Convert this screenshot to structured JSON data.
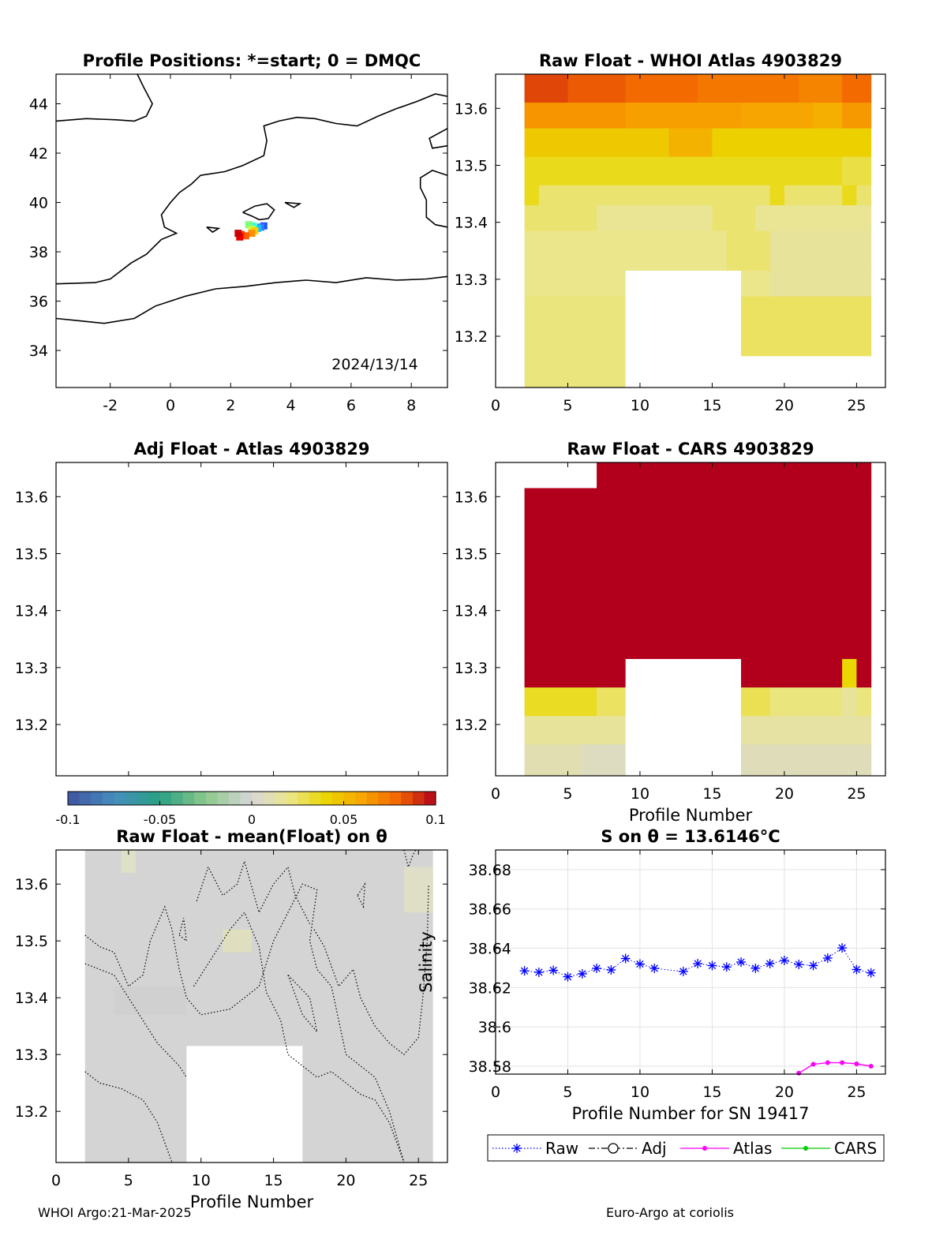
{
  "footer": {
    "left": "WHOI Argo:21-Mar-2025",
    "right": "Euro-Argo at coriolis"
  },
  "colors": {
    "raw": "#0000ff",
    "adj": "#000000",
    "atlas": "#ff00ff",
    "cars": "#00cc00",
    "missing": "#ffffff",
    "anomaly_gray": "#d4d4d4"
  },
  "chart_data": [
    {
      "id": "map",
      "type": "scatter",
      "title": "Profile Positions: *=start; 0 = DMQC",
      "annotation": "2024/13/14",
      "xlim": [
        -3.8,
        9.2
      ],
      "ylim": [
        32.5,
        45.2
      ],
      "xticks": [
        -2,
        0,
        2,
        4,
        6,
        8
      ],
      "yticks": [
        34,
        36,
        38,
        40,
        42,
        44
      ],
      "positions": [
        {
          "lon": 3.1,
          "lat": 39.05,
          "color": "#1f4fff"
        },
        {
          "lon": 3.0,
          "lat": 39.0,
          "color": "#2f7fff"
        },
        {
          "lon": 2.9,
          "lat": 38.95,
          "color": "#1fbfff"
        },
        {
          "lon": 2.75,
          "lat": 39.05,
          "color": "#3fffcf"
        },
        {
          "lon": 2.6,
          "lat": 39.1,
          "color": "#7fff7f"
        },
        {
          "lon": 2.7,
          "lat": 38.9,
          "color": "#cfff3f"
        },
        {
          "lon": 2.8,
          "lat": 38.85,
          "color": "#ffcf00"
        },
        {
          "lon": 2.7,
          "lat": 38.75,
          "color": "#ff8f00"
        },
        {
          "lon": 2.5,
          "lat": 38.65,
          "color": "#ff5f00"
        },
        {
          "lon": 2.35,
          "lat": 38.7,
          "color": "#ff3f00"
        },
        {
          "lon": 2.3,
          "lat": 38.6,
          "color": "#e60000"
        },
        {
          "lon": 2.25,
          "lat": 38.75,
          "color": "#cc0000"
        }
      ]
    },
    {
      "id": "raw_atlas",
      "type": "heatmap",
      "title": "Raw Float - WHOI Atlas  4903829",
      "xlabel": "",
      "xlim": [
        0,
        27
      ],
      "ylim": [
        13.11,
        13.66
      ],
      "xticks": [
        0,
        5,
        10,
        15,
        20,
        25
      ],
      "yticks": [
        13.2,
        13.3,
        13.4,
        13.5,
        13.6
      ],
      "clim": [
        -0.1,
        0.1
      ],
      "bands": [
        {
          "ytop": 13.66,
          "ybot": 13.61,
          "cells": [
            [
              2,
              5,
              0.086
            ],
            [
              5,
              9,
              0.082
            ],
            [
              9,
              14,
              0.078
            ],
            [
              14,
              21,
              0.074
            ],
            [
              21,
              24,
              0.07
            ],
            [
              24,
              26,
              0.078
            ]
          ]
        },
        {
          "ytop": 13.61,
          "ybot": 13.565,
          "cells": [
            [
              2,
              9,
              0.065
            ],
            [
              9,
              17,
              0.062
            ],
            [
              17,
              22,
              0.06
            ],
            [
              22,
              24,
              0.056
            ],
            [
              24,
              26,
              0.064
            ]
          ]
        },
        {
          "ytop": 13.565,
          "ybot": 13.515,
          "cells": [
            [
              2,
              12,
              0.046
            ],
            [
              12,
              15,
              0.055
            ],
            [
              15,
              26,
              0.043
            ]
          ]
        },
        {
          "ytop": 13.515,
          "ybot": 13.465,
          "cells": [
            [
              2,
              24,
              0.036
            ],
            [
              24,
              26,
              0.03
            ]
          ]
        },
        {
          "ytop": 13.465,
          "ybot": 13.43,
          "cells": [
            [
              2,
              3,
              0.036
            ],
            [
              3,
              19,
              0.024
            ],
            [
              19,
              20,
              0.036
            ],
            [
              20,
              24,
              0.024
            ],
            [
              24,
              25,
              0.036
            ],
            [
              25,
              26,
              0.024
            ]
          ]
        },
        {
          "ytop": 13.43,
          "ybot": 13.385,
          "cells": [
            [
              2,
              7,
              0.024
            ],
            [
              7,
              15,
              0.018
            ],
            [
              15,
              18,
              0.024
            ],
            [
              18,
              26,
              0.018
            ]
          ]
        },
        {
          "ytop": 13.385,
          "ybot": 13.315,
          "cells": [
            [
              2,
              16,
              0.02
            ],
            [
              16,
              19,
              0.024
            ],
            [
              19,
              26,
              0.016
            ]
          ]
        },
        {
          "ytop": 13.315,
          "ybot": 13.27,
          "cells": [
            [
              2,
              9,
              0.02
            ],
            [
              9,
              17,
              null
            ],
            [
              17,
              19,
              0.02
            ],
            [
              19,
              26,
              0.016
            ]
          ]
        },
        {
          "ytop": 13.27,
          "ybot": 13.165,
          "cells": [
            [
              2,
              9,
              0.022
            ],
            [
              9,
              17,
              null
            ],
            [
              17,
              26,
              0.026
            ]
          ]
        },
        {
          "ytop": 13.165,
          "ybot": 13.11,
          "cells": [
            [
              2,
              9,
              0.022
            ],
            [
              9,
              26,
              null
            ]
          ]
        }
      ]
    },
    {
      "id": "adj_atlas",
      "type": "heatmap",
      "title": "Adj Float - Atlas  4903829",
      "xlim": [
        0,
        27
      ],
      "ylim": [
        13.11,
        13.66
      ],
      "yticks": [
        13.2,
        13.3,
        13.4,
        13.5,
        13.6
      ],
      "bands": []
    },
    {
      "id": "raw_cars",
      "type": "heatmap",
      "title": "Raw Float - CARS  4903829",
      "xlabel": "Profile Number",
      "xlim": [
        0,
        27
      ],
      "ylim": [
        13.11,
        13.66
      ],
      "xticks": [
        0,
        5,
        10,
        15,
        20,
        25
      ],
      "yticks": [
        13.2,
        13.3,
        13.4,
        13.5,
        13.6
      ],
      "clim": [
        -0.1,
        0.1
      ],
      "bands": [
        {
          "ytop": 13.66,
          "ybot": 13.615,
          "cells": [
            [
              2,
              7,
              null
            ],
            [
              7,
              26,
              0.1
            ]
          ]
        },
        {
          "ytop": 13.615,
          "ybot": 13.315,
          "cells": [
            [
              2,
              26,
              0.1
            ]
          ]
        },
        {
          "ytop": 13.315,
          "ybot": 13.265,
          "cells": [
            [
              2,
              9,
              0.1
            ],
            [
              9,
              17,
              null
            ],
            [
              17,
              24,
              0.1
            ],
            [
              24,
              25,
              0.04
            ],
            [
              25,
              26,
              0.1
            ]
          ]
        },
        {
          "ytop": 13.265,
          "ybot": 13.215,
          "cells": [
            [
              2,
              7,
              0.035
            ],
            [
              7,
              9,
              0.026
            ],
            [
              9,
              17,
              null
            ],
            [
              17,
              19,
              0.028
            ],
            [
              19,
              24,
              0.022
            ],
            [
              24,
              25,
              0.016
            ],
            [
              25,
              26,
              0.022
            ]
          ]
        },
        {
          "ytop": 13.215,
          "ybot": 13.165,
          "cells": [
            [
              2,
              9,
              0.016
            ],
            [
              9,
              17,
              null
            ],
            [
              17,
              26,
              0.014
            ]
          ]
        },
        {
          "ytop": 13.165,
          "ybot": 13.11,
          "cells": [
            [
              2,
              6,
              0.01
            ],
            [
              6,
              9,
              0.006
            ],
            [
              9,
              17,
              null
            ],
            [
              17,
              26,
              0.008
            ]
          ]
        }
      ]
    },
    {
      "id": "colorbar",
      "type": "heatmap",
      "clim": [
        -0.1,
        0.1
      ],
      "ticks": [
        -0.1,
        -0.05,
        0,
        0.05,
        0.1
      ],
      "tick_labels": [
        "-0.1",
        "-0.05",
        "0",
        "0.05",
        "0.1"
      ]
    },
    {
      "id": "anomaly",
      "type": "heatmap",
      "title": "Raw Float - mean(Float) on θ",
      "xlabel": "Profile Number",
      "xlim": [
        0,
        27
      ],
      "ylim": [
        13.11,
        13.66
      ],
      "xticks": [
        0,
        5,
        10,
        15,
        20,
        25
      ],
      "yticks": [
        13.2,
        13.3,
        13.4,
        13.5,
        13.6
      ],
      "clim": [
        -0.1,
        0.1
      ],
      "missing_block": {
        "x": [
          9,
          17
        ],
        "y": [
          13.11,
          13.315
        ]
      },
      "data_x_range": [
        2,
        26
      ]
    },
    {
      "id": "salinity",
      "type": "line",
      "title": "S on θ = 13.6146°C",
      "xlabel": "Profile Number for SN 19417",
      "ylabel": "Salinity",
      "xlim": [
        0,
        27
      ],
      "ylim": [
        38.576,
        38.69
      ],
      "xticks": [
        0,
        5,
        10,
        15,
        20,
        25
      ],
      "yticks": [
        38.58,
        38.6,
        38.62,
        38.64,
        38.66,
        38.68
      ],
      "ytick_labels": [
        "38.58",
        "38.6",
        "38.62",
        "38.64",
        "38.66",
        "38.68"
      ],
      "grid": true,
      "legend": "bottom-outside",
      "series": [
        {
          "name": "Raw",
          "style": "dotted-star",
          "x": [
            2,
            3,
            4,
            5,
            6,
            7,
            8,
            9,
            10,
            11,
            13,
            14,
            15,
            16,
            17,
            18,
            19,
            20,
            21,
            22,
            23,
            24,
            25,
            26
          ],
          "y": [
            38.6285,
            38.6278,
            38.6288,
            38.6255,
            38.627,
            38.6298,
            38.629,
            38.6348,
            38.632,
            38.6298,
            38.6282,
            38.6322,
            38.6312,
            38.6305,
            38.633,
            38.6298,
            38.6322,
            38.6338,
            38.6318,
            38.6312,
            38.635,
            38.6402,
            38.6292,
            38.6275
          ]
        },
        {
          "name": "Adj",
          "style": "dashdot-circle",
          "x": [],
          "y": []
        },
        {
          "name": "Atlas",
          "style": "solid-dot",
          "x": [
            21,
            22,
            23,
            24,
            25,
            26
          ],
          "y": [
            38.5765,
            38.581,
            38.5818,
            38.5818,
            38.5812,
            38.58
          ]
        },
        {
          "name": "CARS",
          "style": "solid-dot",
          "x": [],
          "y": []
        }
      ]
    }
  ]
}
